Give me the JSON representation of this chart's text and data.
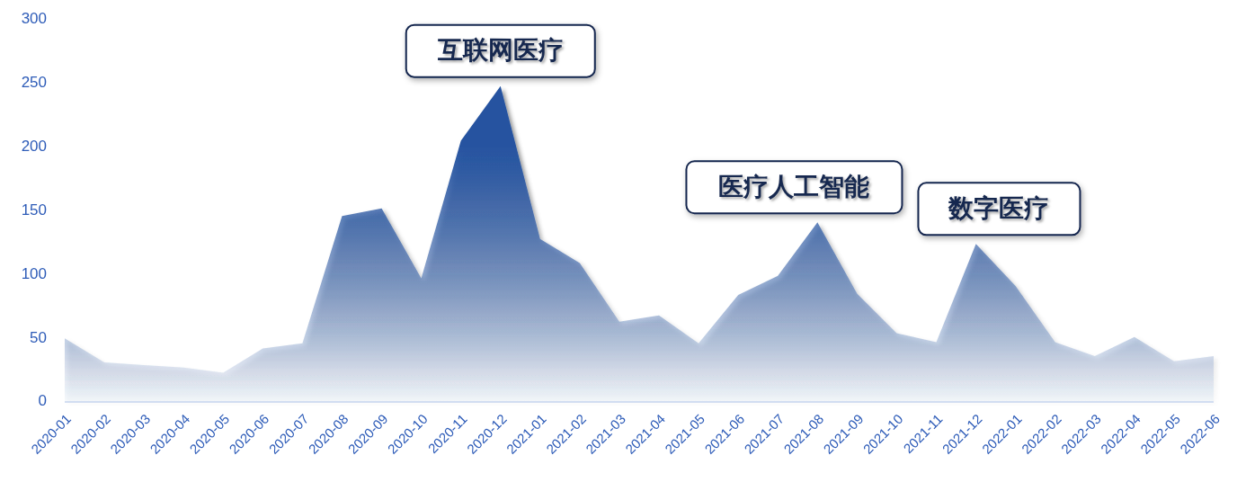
{
  "chart_data": {
    "type": "area",
    "categories": [
      "2020-01",
      "2020-02",
      "2020-03",
      "2020-04",
      "2020-05",
      "2020-06",
      "2020-07",
      "2020-08",
      "2020-09",
      "2020-10",
      "2020-11",
      "2020-12",
      "2021-01",
      "2021-02",
      "2021-03",
      "2021-04",
      "2021-05",
      "2021-06",
      "2021-07",
      "2021-08",
      "2021-09",
      "2021-10",
      "2021-11",
      "2021-12",
      "2022-01",
      "2022-02",
      "2022-03",
      "2022-04",
      "2022-05",
      "2022-06"
    ],
    "values": [
      50,
      31,
      29,
      27,
      23,
      42,
      46,
      146,
      152,
      97,
      205,
      248,
      128,
      109,
      63,
      68,
      46,
      84,
      99,
      141,
      85,
      54,
      47,
      124,
      91,
      47,
      36,
      51,
      32,
      36
    ],
    "color": "#2553a0",
    "ylim": [
      0,
      300
    ],
    "yticks": [
      0,
      50,
      100,
      150,
      200,
      250,
      300
    ],
    "annotations": [
      {
        "text": "互联网医疗",
        "x": "2020-12",
        "y": 248
      },
      {
        "text": "医疗人工智能",
        "x": "2021-08",
        "y": 141
      },
      {
        "text": "数字医疗",
        "x": "2021-12",
        "y": 124
      }
    ]
  }
}
